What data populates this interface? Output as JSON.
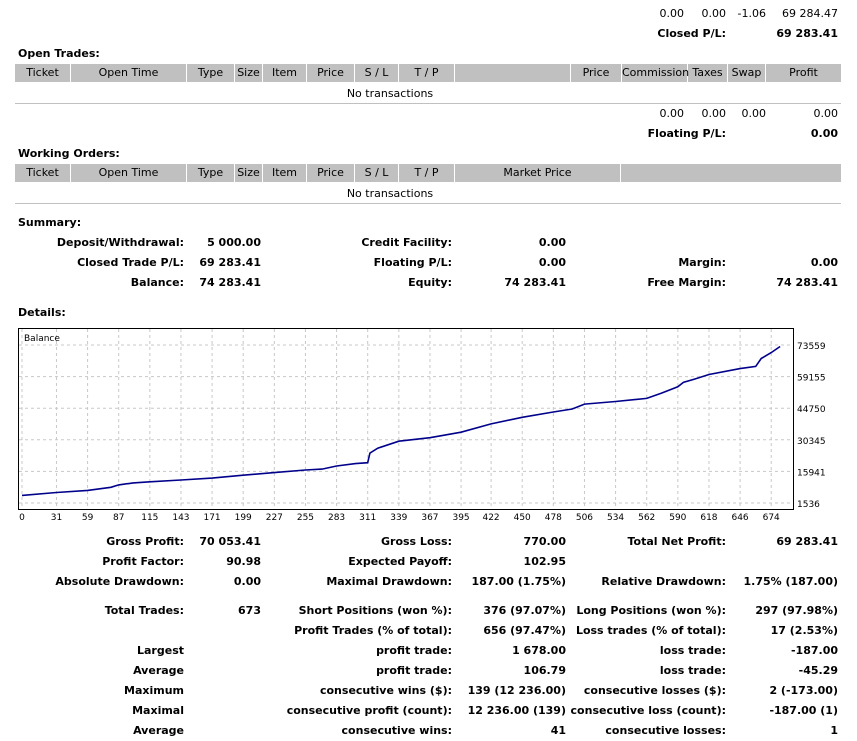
{
  "top_totals": {
    "values": [
      "0.00",
      "0.00",
      "-1.06",
      "69 284.47"
    ],
    "closed_pl_label": "Closed P/L:",
    "closed_pl_value": "69 283.41"
  },
  "open_trades": {
    "title": "Open Trades:",
    "columns": [
      "Ticket",
      "Open Time",
      "Type",
      "Size",
      "Item",
      "Price",
      "S / L",
      "T / P",
      "",
      "Price",
      "Commission",
      "Taxes",
      "Swap",
      "Profit"
    ],
    "empty_text": "No transactions",
    "totals": [
      "0.00",
      "0.00",
      "0.00",
      "0.00"
    ],
    "floating_pl_label": "Floating P/L:",
    "floating_pl_value": "0.00"
  },
  "working_orders": {
    "title": "Working Orders:",
    "columns": [
      "Ticket",
      "Open Time",
      "Type",
      "Size",
      "Item",
      "Price",
      "S / L",
      "T / P",
      "Market Price",
      ""
    ],
    "empty_text": "No transactions"
  },
  "summary": {
    "title": "Summary:",
    "deposit_label": "Deposit/Withdrawal:",
    "deposit_value": "5 000.00",
    "credit_label": "Credit Facility:",
    "credit_value": "0.00",
    "closed_trade_label": "Closed Trade P/L:",
    "closed_trade_value": "69 283.41",
    "floating_label": "Floating P/L:",
    "floating_value": "0.00",
    "margin_label": "Margin:",
    "margin_value": "0.00",
    "balance_label": "Balance:",
    "balance_value": "74 283.41",
    "equity_label": "Equity:",
    "equity_value": "74 283.41",
    "free_margin_label": "Free Margin:",
    "free_margin_value": "74 283.41"
  },
  "details": {
    "title": "Details:",
    "rows": [
      [
        "Gross Profit:",
        "70 053.41",
        "Gross Loss:",
        "770.00",
        "Total Net Profit:",
        "69 283.41"
      ],
      [
        "Profit Factor:",
        "90.98",
        "Expected Payoff:",
        "102.95",
        "",
        ""
      ],
      [
        "Absolute Drawdown:",
        "0.00",
        "Maximal Drawdown:",
        "187.00 (1.75%)",
        "Relative Drawdown:",
        "1.75% (187.00)"
      ],
      [
        "Total Trades:",
        "673",
        "Short Positions (won %):",
        "376 (97.07%)",
        "Long Positions (won %):",
        "297 (97.98%)"
      ],
      [
        "",
        "",
        "Profit Trades (% of total):",
        "656 (97.47%)",
        "Loss trades (% of total):",
        "17 (2.53%)"
      ],
      [
        "Largest",
        "",
        "profit trade:",
        "1 678.00",
        "loss trade:",
        "-187.00"
      ],
      [
        "Average",
        "",
        "profit trade:",
        "106.79",
        "loss trade:",
        "-45.29"
      ],
      [
        "Maximum",
        "",
        "consecutive wins ($):",
        "139 (12 236.00)",
        "consecutive losses ($):",
        "2 (-173.00)"
      ],
      [
        "Maximal",
        "",
        "consecutive profit (count):",
        "12 236.00 (139)",
        "consecutive loss (count):",
        "-187.00 (1)"
      ],
      [
        "Average",
        "",
        "consecutive wins:",
        "41",
        "consecutive losses:",
        "1"
      ]
    ]
  },
  "chart_data": {
    "type": "line",
    "title": "Balance",
    "xlabel": "",
    "ylabel": "",
    "x_ticks": [
      0,
      31,
      59,
      87,
      115,
      143,
      171,
      199,
      227,
      255,
      283,
      311,
      339,
      367,
      395,
      422,
      450,
      478,
      506,
      534,
      562,
      590,
      618,
      646,
      674
    ],
    "y_ticks": [
      1536,
      15941,
      30345,
      44750,
      59155,
      73559
    ],
    "xlim": [
      0,
      690
    ],
    "ylim": [
      1536,
      80400
    ],
    "grid": true,
    "line_color": "#00008b",
    "series": [
      {
        "x": [
          0,
          31,
          59,
          80,
          87,
          100,
          115,
          143,
          171,
          199,
          227,
          255,
          270,
          283,
          300,
          311,
          313,
          320,
          339,
          367,
          395,
          422,
          450,
          478,
          495,
          506,
          534,
          562,
          575,
          590,
          595,
          605,
          618,
          646,
          660,
          665,
          674,
          682
        ],
        "y": [
          5000,
          6300,
          7300,
          8700,
          9800,
          10700,
          11200,
          12000,
          12900,
          14200,
          15400,
          16600,
          17000,
          18400,
          19500,
          19900,
          24300,
          26500,
          29700,
          31300,
          33800,
          37600,
          40600,
          43000,
          44400,
          46600,
          47800,
          49200,
          51600,
          54500,
          56500,
          58000,
          60100,
          62800,
          63800,
          67400,
          70100,
          72900
        ]
      }
    ]
  }
}
